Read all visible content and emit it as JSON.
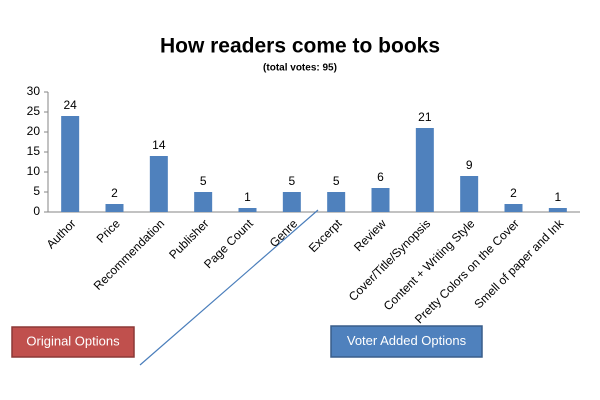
{
  "chart_data": {
    "type": "bar",
    "title": "How readers come to books",
    "subtitle": "(total votes: 95)",
    "categories": [
      "Author",
      "Price",
      "Recommendation",
      "Publisher",
      "Page Count",
      "Genre",
      "Excerpt",
      "Review",
      "Cover/Title/Synopsis",
      "Content + Writing Style",
      "Pretty Colors on the Cover",
      "Smell of paper and Ink"
    ],
    "values": [
      24,
      2,
      14,
      5,
      1,
      5,
      5,
      6,
      21,
      9,
      2,
      1
    ],
    "color": "#4f81bd",
    "ylim": [
      0,
      30
    ],
    "yticks": [
      0,
      5,
      10,
      15,
      20,
      25,
      30
    ],
    "grid": false,
    "annotations": [
      "Original Options",
      "Voter Added Options"
    ]
  }
}
